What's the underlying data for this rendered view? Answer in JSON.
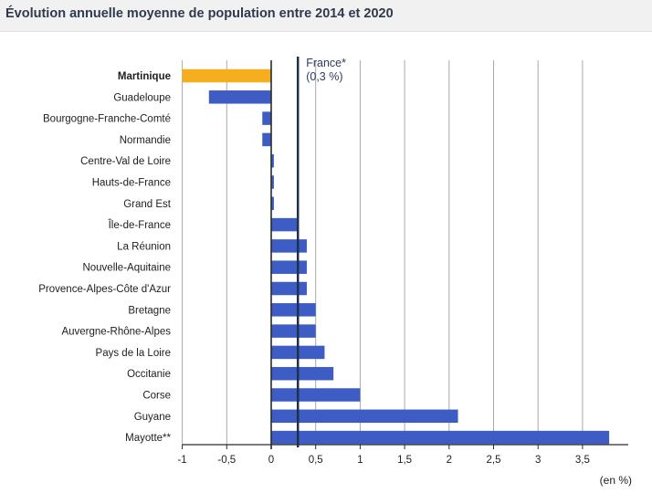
{
  "title": "Évolution annuelle moyenne de population entre 2014 et 2020",
  "chart_data": {
    "type": "bar",
    "orientation": "horizontal",
    "title": "Évolution annuelle moyenne de population entre 2014 et 2020",
    "xlabel": "(en %)",
    "ylabel": "",
    "xlim": [
      -1,
      4
    ],
    "xticks": [
      -1,
      -0.5,
      0,
      0.5,
      1,
      1.5,
      2,
      2.5,
      3,
      3.5
    ],
    "xtick_labels": [
      "-1",
      "-0,5",
      "0",
      "0,5",
      "1",
      "1,5",
      "2",
      "2,5",
      "3",
      "3,5"
    ],
    "grid": "vertical",
    "categories": [
      "Martinique",
      "Guadeloupe",
      "Bourgogne-Franche-Comté",
      "Normandie",
      "Centre-Val de Loire",
      "Hauts-de-France",
      "Grand Est",
      "Île-de-France",
      "La Réunion",
      "Nouvelle-Aquitaine",
      "Provence-Alpes-Côte d'Azur",
      "Bretagne",
      "Auvergne-Rhône-Alpes",
      "Pays de la Loire",
      "Occitanie",
      "Corse",
      "Guyane",
      "Mayotte**"
    ],
    "values": [
      -1.0,
      -0.7,
      -0.1,
      -0.1,
      0.03,
      0.03,
      0.03,
      0.3,
      0.4,
      0.4,
      0.4,
      0.5,
      0.5,
      0.6,
      0.7,
      1.0,
      2.1,
      3.8
    ],
    "highlight_category": "Martinique",
    "colors": {
      "bar": "#3d5cc4",
      "highlight": "#f5ae1e",
      "reference": "#1e3050",
      "grid": "#a8a8a8",
      "axis": "#2a2a2a"
    },
    "reference_line": {
      "value": 0.3,
      "label_line1": "France*",
      "label_line2": "(0,3 %)"
    }
  }
}
